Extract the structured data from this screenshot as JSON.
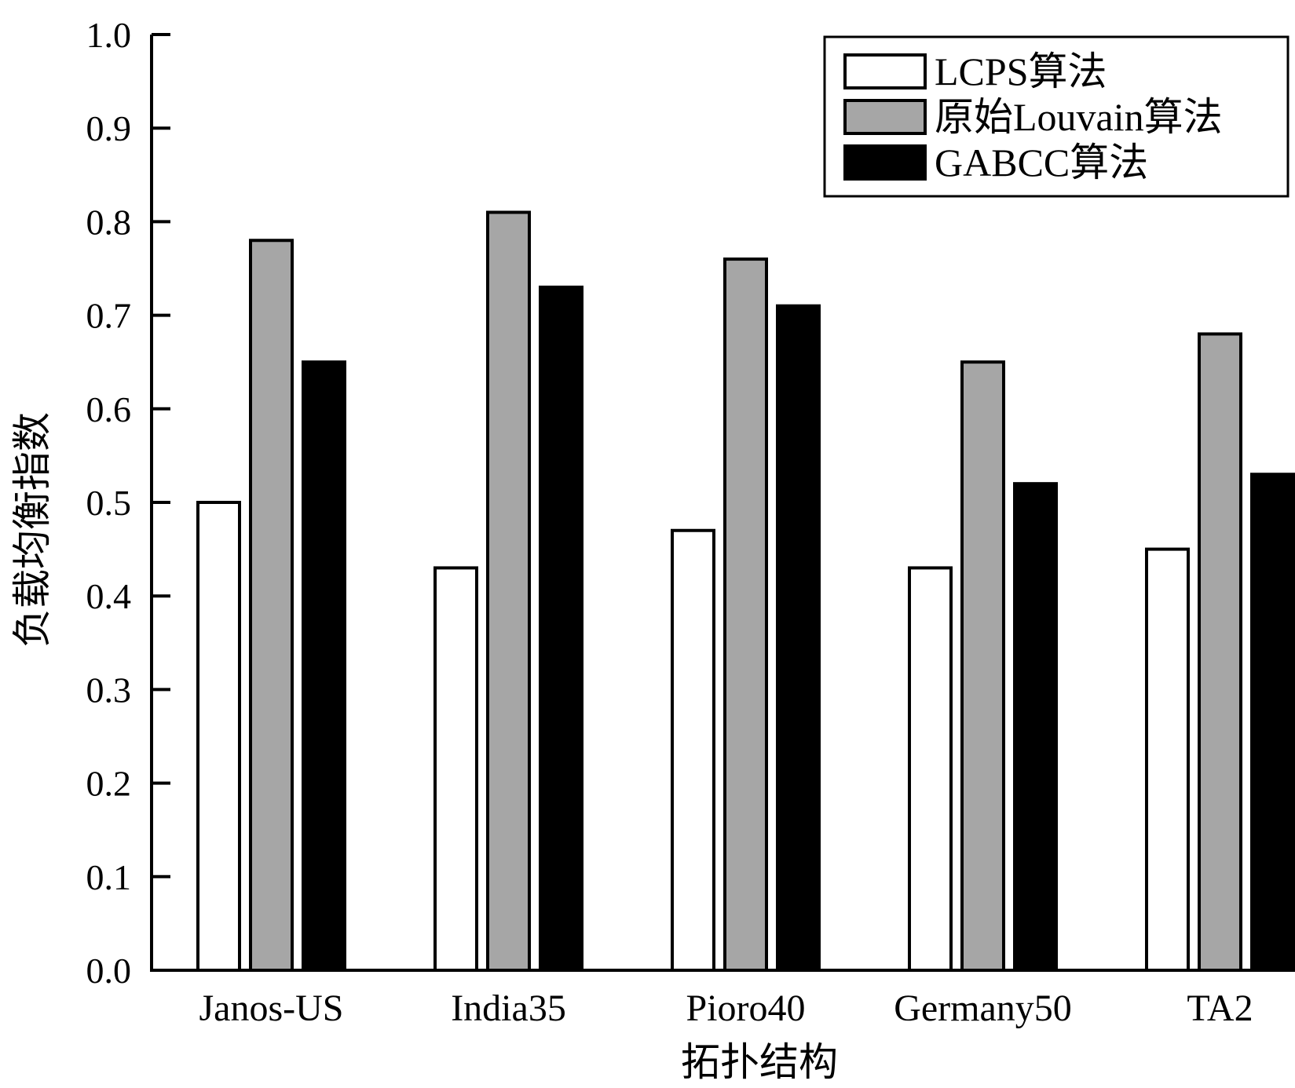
{
  "chart_data": {
    "type": "bar",
    "title": "",
    "xlabel": "拓扑结构",
    "ylabel": "负载均衡指数",
    "categories": [
      "Janos-US",
      "India35",
      "Pioro40",
      "Germany50",
      "TA2"
    ],
    "series": [
      {
        "name": "LCPS算法",
        "color": "#ffffff",
        "values": [
          0.5,
          0.43,
          0.47,
          0.43,
          0.45
        ]
      },
      {
        "name": "原始Louvain算法",
        "color": "#a6a6a6",
        "values": [
          0.78,
          0.81,
          0.76,
          0.65,
          0.68
        ]
      },
      {
        "name": "GABCC算法",
        "color": "#000000",
        "values": [
          0.65,
          0.73,
          0.71,
          0.52,
          0.53
        ]
      }
    ],
    "ylim": [
      0.0,
      1.0
    ],
    "yticks": [
      "0.0",
      "0.1",
      "0.2",
      "0.3",
      "0.4",
      "0.5",
      "0.6",
      "0.7",
      "0.8",
      "0.9",
      "1.0"
    ],
    "grid": false,
    "legend_position": "top-right"
  }
}
